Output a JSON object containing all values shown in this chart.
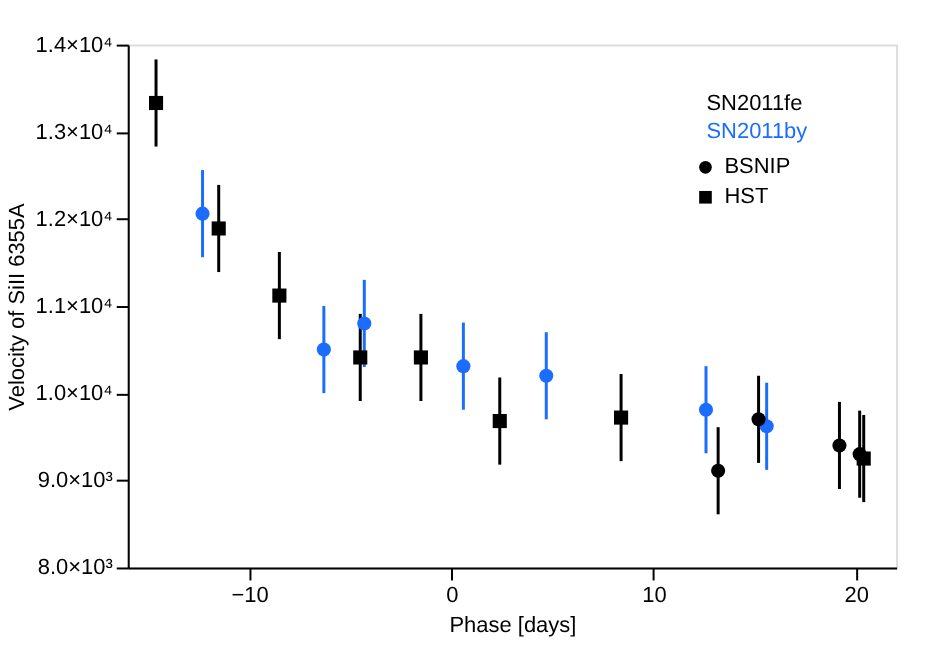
{
  "chart_data": {
    "type": "scatter",
    "xlabel": "Phase [days]",
    "ylabel": "Velocity of SiII 6355A",
    "xlim": [
      -16,
      22
    ],
    "xticks": [
      -10,
      0,
      10,
      20
    ],
    "ylim": [
      8000,
      14000
    ],
    "yticks": [
      {
        "value": 8000,
        "label": "8.0×10³"
      },
      {
        "value": 9000,
        "label": "9.0×10³"
      },
      {
        "value": 10000,
        "label": "1.0×10⁴"
      },
      {
        "value": 11000,
        "label": "1.1×10⁴"
      },
      {
        "value": 12000,
        "label": "1.2×10⁴"
      },
      {
        "value": 13000,
        "label": "1.3×10⁴"
      },
      {
        "value": 14000,
        "label": "1.4×10⁴"
      }
    ],
    "grid": false,
    "legend": "top right",
    "series": [
      {
        "name": "BSNIP",
        "color": "#000000",
        "marker": "circle",
        "x": [
          13.2,
          15.2,
          19.2,
          20.2
        ],
        "values": [
          9110,
          9700,
          9400,
          9300
        ],
        "errors": [
          500,
          500,
          500,
          500
        ]
      },
      {
        "name": "HST",
        "color": "#000000",
        "marker": "square",
        "x": [
          -14.6,
          -11.5,
          -8.5,
          -4.5,
          -1.5,
          2.4,
          8.4,
          20.4
        ],
        "values": [
          13330,
          11890,
          11120,
          10410,
          10410,
          9680,
          9720,
          9250
        ],
        "errors": [
          500,
          500,
          500,
          500,
          500,
          500,
          500,
          500
        ]
      },
      {
        "name": "SN2011by",
        "color": "#1a6dff",
        "marker": "circle",
        "x": [
          -12.3,
          -6.3,
          -4.3,
          0.6,
          4.7,
          12.6,
          15.6
        ],
        "values": [
          12060,
          10500,
          10800,
          10310,
          10200,
          9810,
          9620
        ],
        "errors": [
          500,
          500,
          500,
          500,
          500,
          500,
          500
        ]
      }
    ],
    "annotations": [
      "SN2011fe"
    ]
  }
}
